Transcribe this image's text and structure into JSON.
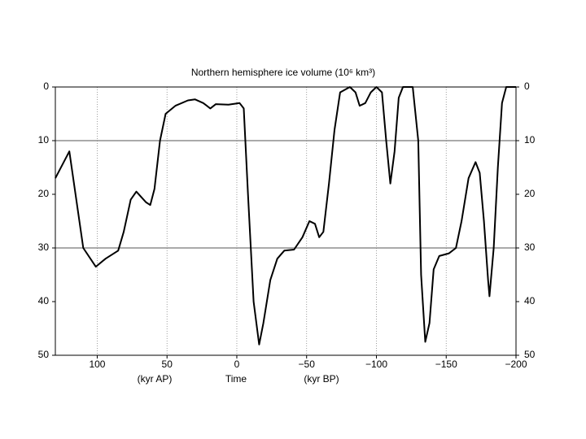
{
  "chart_data": {
    "type": "line",
    "title": "Northern hemisphere ice volume (10⁶ km³)",
    "x_annotations": [
      "(kyr AP)",
      "Time",
      "(kyr BP)"
    ],
    "series": [
      {
        "name": "Ice volume",
        "color": "#000000",
        "x": [
          130,
          120,
          110,
          101,
          94,
          85,
          81,
          76,
          72,
          65,
          62,
          59,
          55,
          51,
          44,
          35,
          30,
          24,
          19,
          15,
          6,
          -2,
          -5,
          -8,
          -12,
          -16,
          -19,
          -24,
          -29,
          -34,
          -41,
          -47,
          -52,
          -56,
          -59,
          -62,
          -66,
          -70,
          -74,
          -81,
          -85,
          -88,
          -92,
          -96,
          -100,
          -104,
          -107,
          -110,
          -113,
          -116,
          -119,
          -126,
          -130,
          -132,
          -135,
          -138,
          -141,
          -145,
          -152,
          -157,
          -161,
          -166,
          -171,
          -174,
          -177,
          -180,
          -181,
          -184,
          -187,
          -190,
          -193,
          -200
        ],
        "values": [
          17,
          12,
          30,
          33.5,
          32,
          30.5,
          27,
          21,
          19.5,
          21.5,
          22,
          19,
          10,
          5,
          3.5,
          2.5,
          2.3,
          3,
          4,
          3.2,
          3.3,
          3,
          4,
          20,
          40,
          48,
          44,
          36,
          32,
          30.5,
          30.3,
          28,
          25,
          25.5,
          28,
          27,
          18,
          8,
          1,
          0,
          1,
          3.5,
          3,
          1,
          0,
          1,
          10,
          18,
          12,
          2,
          0,
          0,
          10,
          35,
          47.5,
          44,
          34,
          31.5,
          31,
          30,
          25,
          17,
          14,
          16,
          25,
          36,
          39,
          30,
          15,
          3,
          0,
          0
        ]
      }
    ],
    "xlim": [
      130,
      -200
    ],
    "xticks": [
      100,
      50,
      0,
      {
        "value": -50,
        "label": "−50"
      },
      {
        "value": -100,
        "label": "−100"
      },
      {
        "value": -150,
        "label": "−150"
      },
      {
        "value": -200,
        "label": "−200"
      }
    ],
    "ylim": [
      0,
      50
    ],
    "y_inverted": true,
    "yticks": [
      0,
      10,
      20,
      30,
      40,
      50
    ],
    "y_grid_lines": [
      10,
      30
    ],
    "x_grid": "dotted"
  }
}
